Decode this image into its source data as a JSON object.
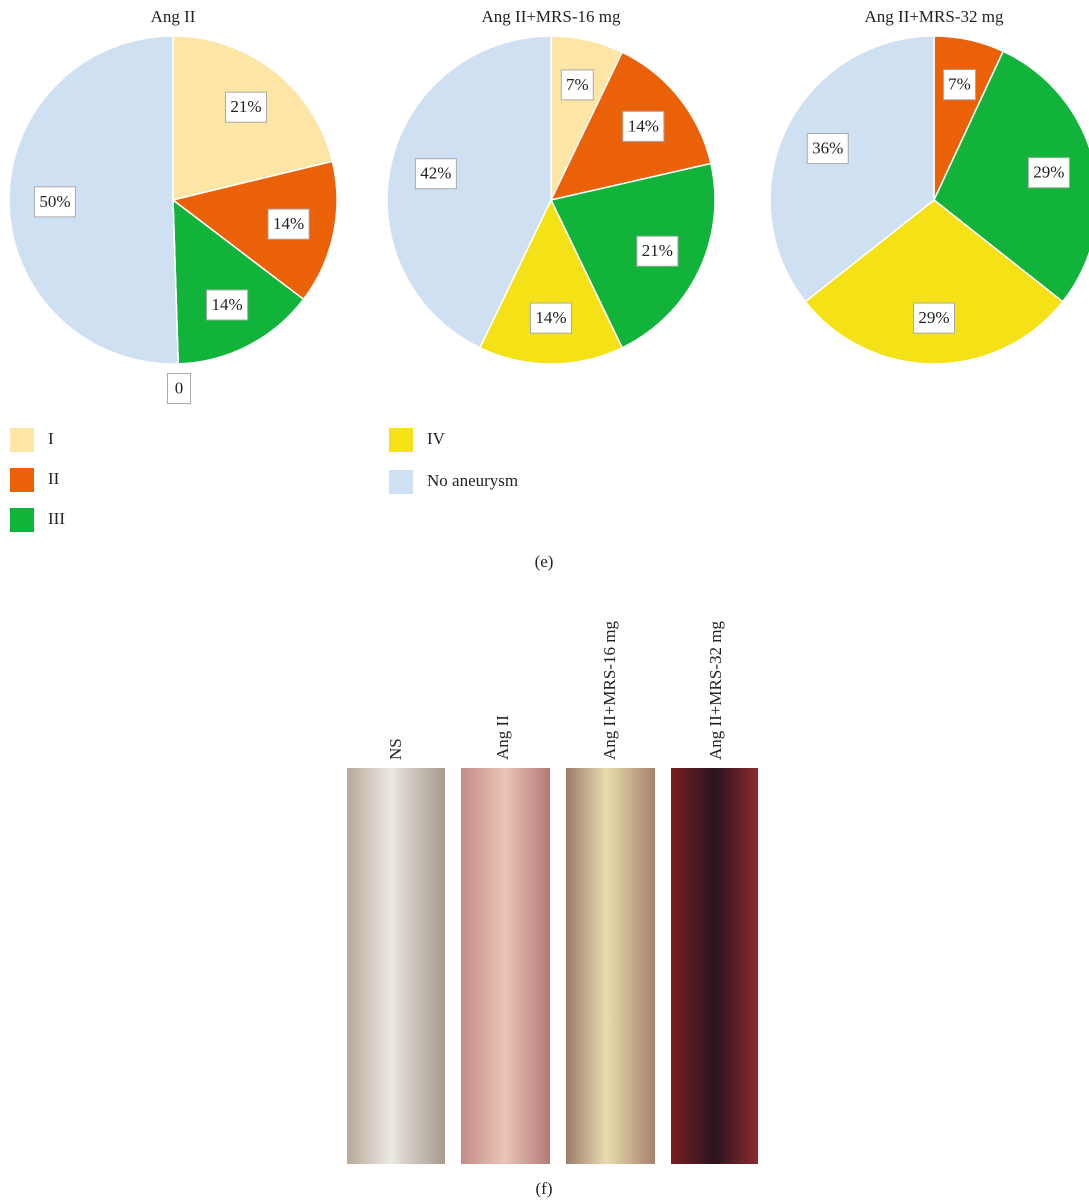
{
  "chart_data": [
    {
      "type": "pie",
      "title": "Ang II",
      "categories": [
        "I",
        "II",
        "III",
        "IV",
        "No aneurysm"
      ],
      "values": [
        21,
        14,
        14,
        0,
        50
      ],
      "value_labels": [
        "21%",
        "14%",
        "14%",
        "0",
        "50%"
      ],
      "colors": [
        "#fde5a6",
        "#ea6108",
        "#12b33a",
        "#f4e217",
        "#cfe0f2"
      ]
    },
    {
      "type": "pie",
      "title": "Ang II+MRS-16 mg",
      "categories": [
        "I",
        "II",
        "III",
        "IV",
        "No aneurysm"
      ],
      "values": [
        7,
        14,
        21,
        14,
        42
      ],
      "value_labels": [
        "7%",
        "14%",
        "21%",
        "14%",
        "42%"
      ],
      "colors": [
        "#fde5a6",
        "#ea6108",
        "#12b33a",
        "#f4e217",
        "#cfe0f2"
      ]
    },
    {
      "type": "pie",
      "title": "Ang II+MRS-32 mg",
      "categories": [
        "II",
        "III",
        "IV",
        "No aneurysm"
      ],
      "values": [
        7,
        29,
        29,
        36
      ],
      "value_labels": [
        "7%",
        "29%",
        "29%",
        "36%"
      ],
      "colors": [
        "#ea6108",
        "#12b33a",
        "#f4e217",
        "#cfe0f2"
      ]
    }
  ],
  "legend": {
    "labels": [
      "I",
      "II",
      "III",
      "IV",
      "No aneurysm"
    ],
    "colors": [
      "#fde5a6",
      "#ea6108",
      "#12b33a",
      "#f4e217",
      "#cfe0f2"
    ]
  },
  "panel_labels": [
    "(e)",
    "(f)"
  ],
  "photos": {
    "labels": [
      "NS",
      "Ang II",
      "Ang II+MRS-16 mg",
      "Ang II+MRS-32 mg"
    ]
  }
}
